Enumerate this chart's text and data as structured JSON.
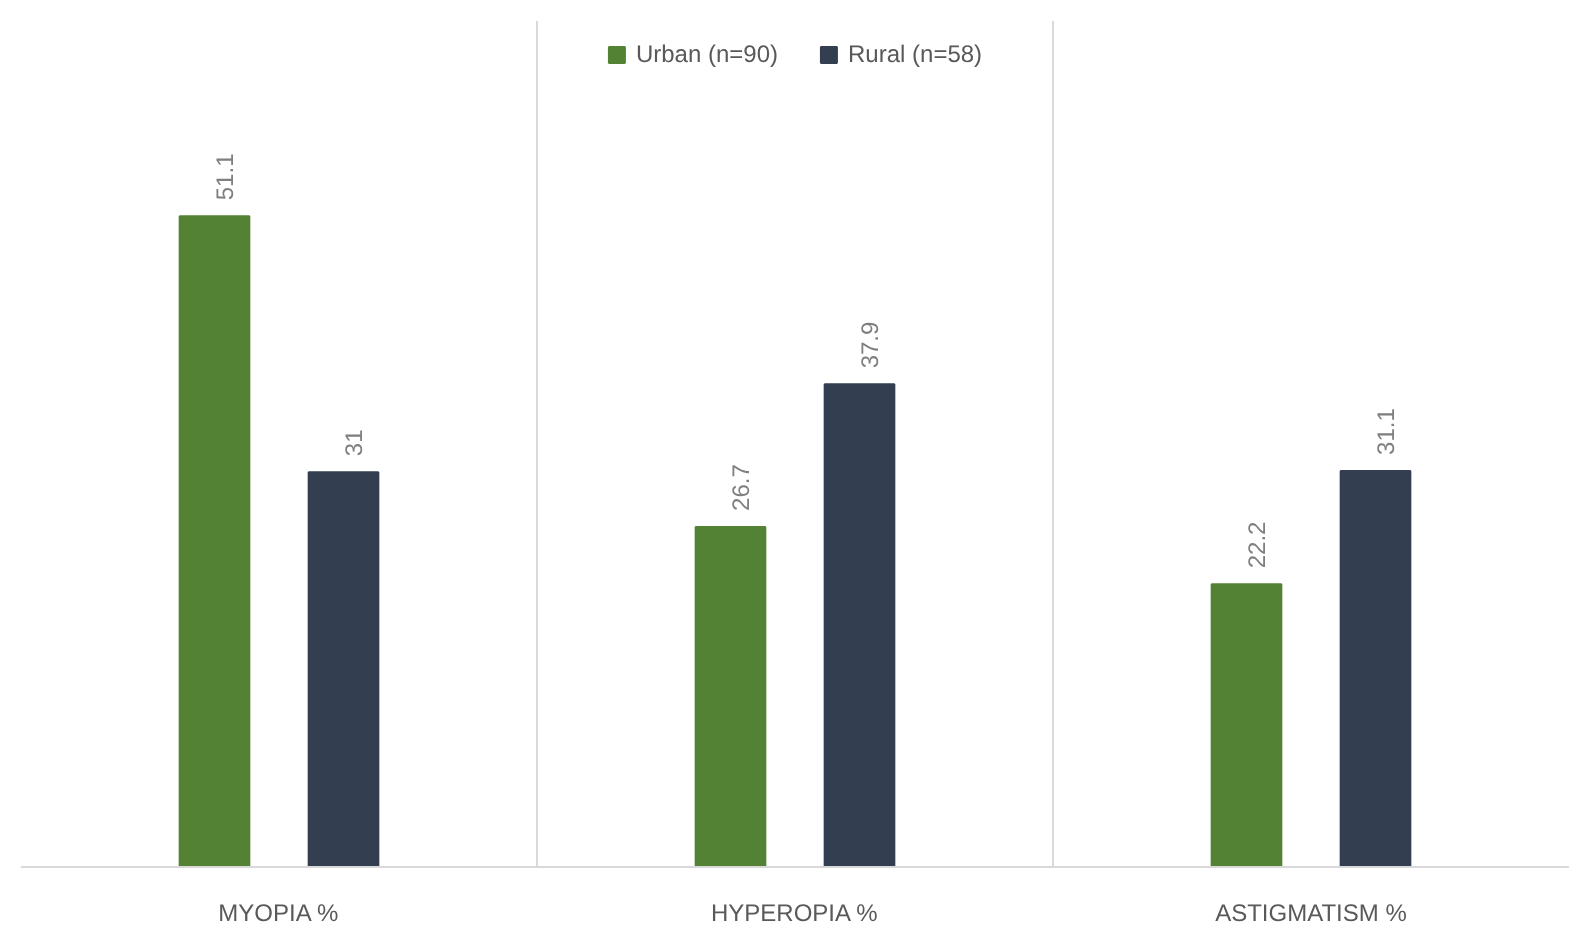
{
  "chart_data": {
    "type": "bar",
    "categories": [
      "MYOPIA %",
      "HYPEROPIA %",
      "ASTIGMATISM %"
    ],
    "series": [
      {
        "name": "Urban (n=90)",
        "color": "#548235",
        "values": [
          51.1,
          26.7,
          22.2
        ]
      },
      {
        "name": "Rural (n=58)",
        "color": "#333f50",
        "values": [
          31,
          37.9,
          31.1
        ]
      }
    ],
    "tick_labels": "x",
    "data_labels": true,
    "grid": "x",
    "legend": "top"
  }
}
